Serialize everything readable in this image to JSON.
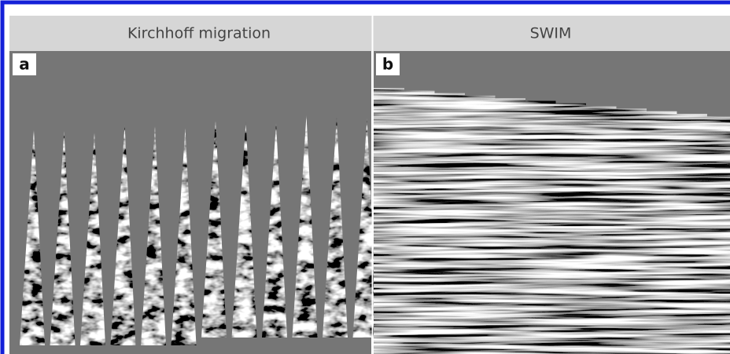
{
  "panels": [
    {
      "title": "Kirchhoff migration",
      "label": "a"
    },
    {
      "title": "SWIM",
      "label": "b"
    }
  ]
}
